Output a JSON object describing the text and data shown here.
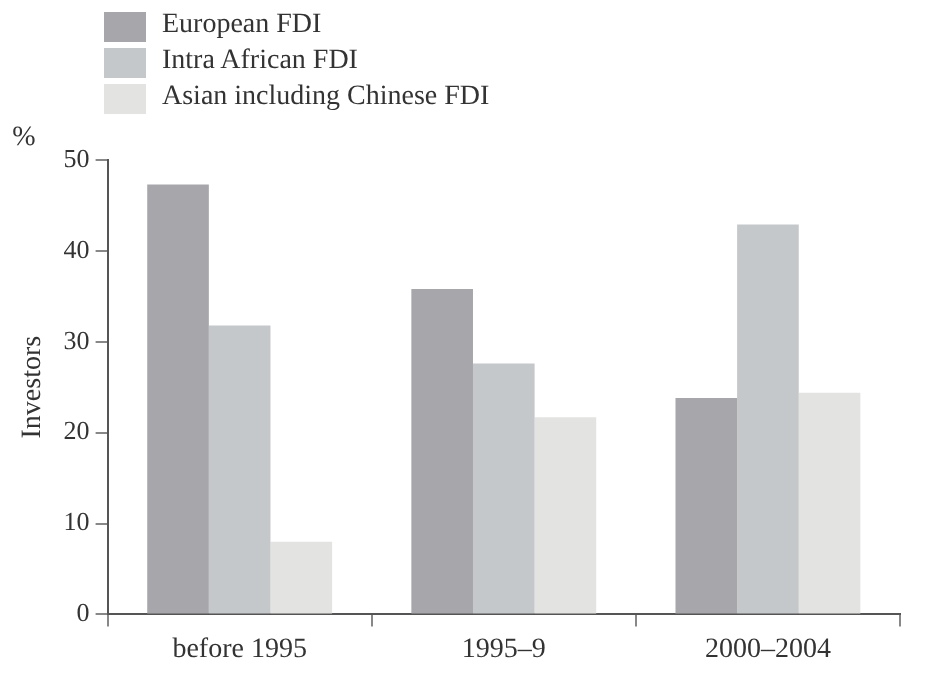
{
  "chart_data": {
    "type": "bar",
    "categories": [
      "before 1995",
      "1995–9",
      "2000–2004"
    ],
    "series": [
      {
        "name": "European FDI",
        "color": "#a7a6aa",
        "values": [
          47.3,
          35.8,
          23.8
        ]
      },
      {
        "name": "Intra African FDI",
        "color": "#c4c8ca",
        "values": [
          31.8,
          27.6,
          42.9
        ]
      },
      {
        "name": "Asian including Chinese FDI",
        "color": "#e3e4e2",
        "values": [
          8,
          21.7,
          24.4
        ]
      }
    ],
    "ylabel": "Investors",
    "annotations": [
      "%"
    ],
    "ylim": [
      0,
      50
    ],
    "yticks": [
      0,
      10,
      20,
      30,
      40,
      50
    ],
    "grid": false,
    "legend": "top left"
  }
}
